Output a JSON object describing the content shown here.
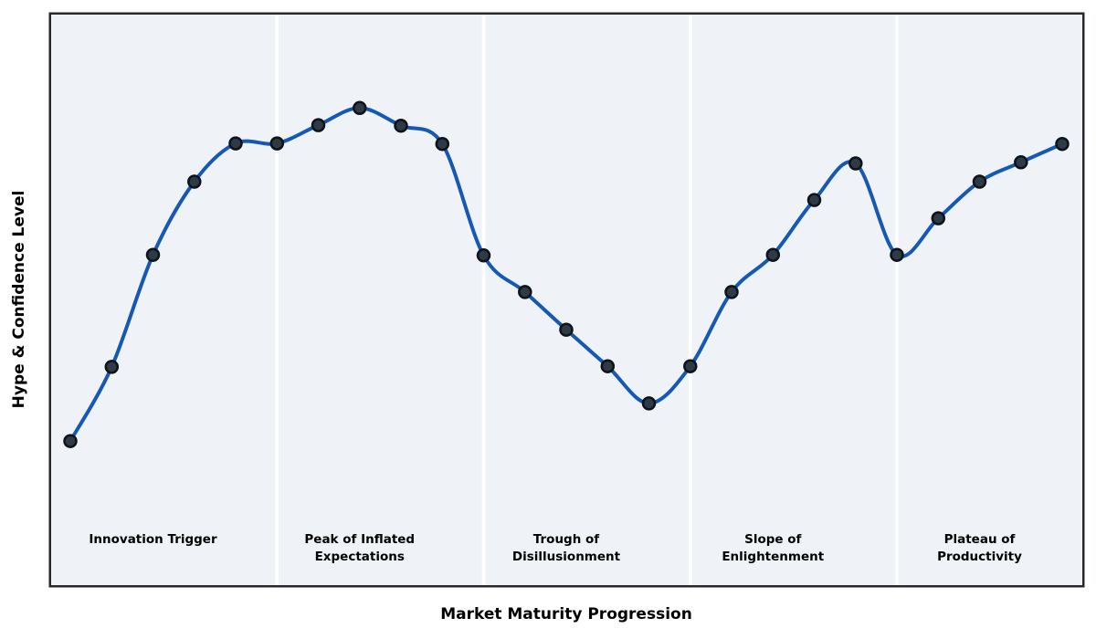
{
  "figure": {
    "xlabel": "Market Maturity Progression",
    "ylabel": "Hype & Confidence Level"
  },
  "chart_data": {
    "type": "line",
    "title": "",
    "xlabel": "Market Maturity Progression",
    "ylabel": "Hype & Confidence Level",
    "x": [
      0,
      1,
      2,
      3,
      4,
      5,
      6,
      7,
      8,
      9,
      10,
      11,
      12,
      13,
      14,
      15,
      16,
      17,
      18,
      19,
      20,
      21,
      22,
      23,
      24
    ],
    "values": [
      25.2,
      38.2,
      57.8,
      70.6,
      77.3,
      77.3,
      80.5,
      83.5,
      80.4,
      77.2,
      57.7,
      51.3,
      44.7,
      38.3,
      31.8,
      38.3,
      51.3,
      57.8,
      67.4,
      73.8,
      57.8,
      64.2,
      70.6,
      74.0,
      77.2
    ],
    "ylim": [
      0,
      100
    ],
    "grid": "off",
    "legend": "none",
    "marker": "circle",
    "line_style": "smooth-spline",
    "phase_boundaries_x": [
      5,
      10,
      15,
      20
    ],
    "phase_centers_x": [
      2,
      7,
      12,
      17,
      22
    ],
    "phases": [
      {
        "label": "Innovation Trigger"
      },
      {
        "label": "Peak of Inflated\nExpectations"
      },
      {
        "label": "Trough of\nDisillusionment"
      },
      {
        "label": "Slope of\nEnlightenment"
      },
      {
        "label": "Plateau of\nProductivity"
      }
    ],
    "colors": {
      "line": "#1659b5",
      "marker_fill": "#2e3a46",
      "marker_edge": "#0d1319",
      "plot_background": "#eff3f8",
      "phase_divider": "#ffffff",
      "spine": "#26282c",
      "figure_background": "#ffffff",
      "text": "#000000"
    }
  }
}
